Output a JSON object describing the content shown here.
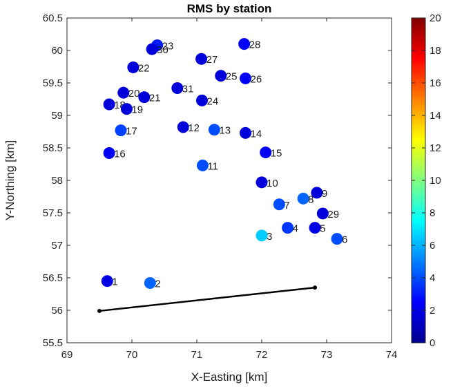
{
  "chart_data": {
    "type": "scatter",
    "title": "RMS by station",
    "xlabel": "X-Easting [km]",
    "ylabel": "Y-Northing [km]",
    "xlim": [
      69,
      74
    ],
    "ylim": [
      55.5,
      60.5
    ],
    "xticks": [
      "69",
      "70",
      "71",
      "72",
      "73",
      "74"
    ],
    "yticks": [
      "55.5",
      "56",
      "56.5",
      "57",
      "57.5",
      "58",
      "58.5",
      "59",
      "59.5",
      "60",
      "60.5"
    ],
    "colorbar": {
      "range": [
        0,
        20
      ],
      "ticks": [
        "0",
        "2",
        "4",
        "6",
        "8",
        "10",
        "12",
        "14",
        "16",
        "18",
        "20"
      ]
    },
    "stations": [
      {
        "label": "1",
        "x": 69.62,
        "y": 56.45,
        "rms": 2.0
      },
      {
        "label": "2",
        "x": 70.28,
        "y": 56.42,
        "rms": 4.5
      },
      {
        "label": "3",
        "x": 72.0,
        "y": 57.15,
        "rms": 6.5
      },
      {
        "label": "4",
        "x": 72.4,
        "y": 57.27,
        "rms": 3.6
      },
      {
        "label": "5",
        "x": 72.82,
        "y": 57.27,
        "rms": 2.0
      },
      {
        "label": "6",
        "x": 73.16,
        "y": 57.1,
        "rms": 4.0
      },
      {
        "label": "7",
        "x": 72.27,
        "y": 57.63,
        "rms": 4.0
      },
      {
        "label": "8",
        "x": 72.64,
        "y": 57.72,
        "rms": 4.5
      },
      {
        "label": "9",
        "x": 72.85,
        "y": 57.81,
        "rms": 1.8
      },
      {
        "label": "10",
        "x": 72.0,
        "y": 57.97,
        "rms": 1.8
      },
      {
        "label": "11",
        "x": 71.09,
        "y": 58.23,
        "rms": 4.0
      },
      {
        "label": "12",
        "x": 70.79,
        "y": 58.82,
        "rms": 1.8
      },
      {
        "label": "13",
        "x": 71.27,
        "y": 58.78,
        "rms": 4.0
      },
      {
        "label": "14",
        "x": 71.75,
        "y": 58.73,
        "rms": 1.8
      },
      {
        "label": "15",
        "x": 72.06,
        "y": 58.43,
        "rms": 2.3
      },
      {
        "label": "16",
        "x": 69.65,
        "y": 58.42,
        "rms": 2.3
      },
      {
        "label": "17",
        "x": 69.83,
        "y": 58.77,
        "rms": 3.8
      },
      {
        "label": "18",
        "x": 69.65,
        "y": 59.17,
        "rms": 1.8
      },
      {
        "label": "19",
        "x": 69.92,
        "y": 59.1,
        "rms": 1.8
      },
      {
        "label": "20",
        "x": 69.87,
        "y": 59.35,
        "rms": 1.8
      },
      {
        "label": "21",
        "x": 70.19,
        "y": 59.28,
        "rms": 1.8
      },
      {
        "label": "22",
        "x": 70.02,
        "y": 59.74,
        "rms": 1.8
      },
      {
        "label": "23",
        "x": 70.39,
        "y": 60.08,
        "rms": 3.0
      },
      {
        "label": "24",
        "x": 71.08,
        "y": 59.23,
        "rms": 1.8
      },
      {
        "label": "25",
        "x": 71.37,
        "y": 59.61,
        "rms": 1.8
      },
      {
        "label": "26",
        "x": 71.75,
        "y": 59.57,
        "rms": 2.3
      },
      {
        "label": "27",
        "x": 71.07,
        "y": 59.87,
        "rms": 1.8
      },
      {
        "label": "28",
        "x": 71.73,
        "y": 60.1,
        "rms": 2.3
      },
      {
        "label": "29",
        "x": 72.94,
        "y": 57.49,
        "rms": 1.8
      },
      {
        "label": "30",
        "x": 70.31,
        "y": 60.02,
        "rms": 1.8
      },
      {
        "label": "31",
        "x": 70.7,
        "y": 59.42,
        "rms": 1.8
      }
    ],
    "line": {
      "x": [
        69.5,
        72.82
      ],
      "y": [
        55.99,
        56.35
      ]
    }
  }
}
